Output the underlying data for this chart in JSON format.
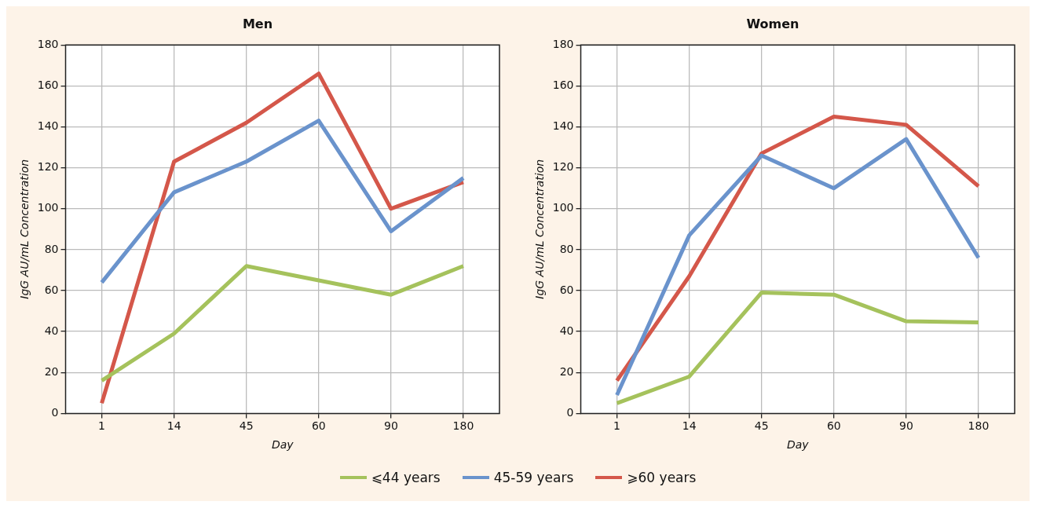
{
  "chart_data": [
    {
      "type": "line",
      "title": "Men",
      "xlabel": "Day",
      "ylabel": "IgG AU/mL Concentration",
      "categories": [
        "1",
        "14",
        "45",
        "60",
        "90",
        "180"
      ],
      "ylim": [
        0,
        180
      ],
      "yticks": [
        0,
        20,
        40,
        60,
        80,
        100,
        120,
        140,
        160,
        180
      ],
      "grid": true,
      "legend": "bottom",
      "marker": "none",
      "series": [
        {
          "name": "⩽44 years",
          "color": "#a5c25c",
          "values": [
            16,
            39,
            72,
            65,
            58,
            72
          ]
        },
        {
          "name": "45-59 years",
          "color": "#6a93cc",
          "values": [
            64,
            108,
            123,
            143,
            89,
            115
          ]
        },
        {
          "name": "⩾60 years",
          "color": "#d4574a",
          "values": [
            5,
            123,
            142,
            166,
            100,
            113
          ]
        }
      ]
    },
    {
      "type": "line",
      "title": "Women",
      "xlabel": "Day",
      "ylabel": "IgG AU/mL Concentration",
      "categories": [
        "1",
        "14",
        "45",
        "60",
        "90",
        "180"
      ],
      "ylim": [
        0,
        180
      ],
      "yticks": [
        0,
        20,
        40,
        60,
        80,
        100,
        120,
        140,
        160,
        180
      ],
      "grid": true,
      "marker": "none",
      "series": [
        {
          "color": "#a5c25c",
          "values": [
            5,
            18,
            59,
            58,
            45,
            44.5
          ]
        },
        {
          "color": "#6a93cc",
          "values": [
            9,
            87,
            126,
            110,
            134,
            76
          ]
        },
        {
          "color": "#d4574a",
          "values": [
            16,
            67,
            127,
            145,
            141,
            111
          ]
        }
      ]
    }
  ]
}
